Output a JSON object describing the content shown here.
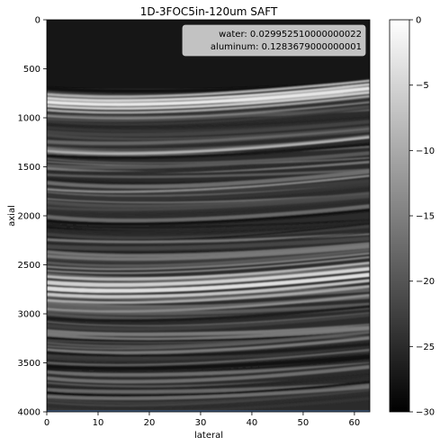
{
  "chart_data": {
    "type": "heatmap",
    "title": "1D-3FOC5in-120um SAFT",
    "xlabel": "lateral",
    "ylabel": "axial",
    "xlim": [
      0,
      63
    ],
    "ylim": [
      4000,
      0
    ],
    "xticks": [
      "0",
      "10",
      "20",
      "30",
      "40",
      "50",
      "60"
    ],
    "yticks": [
      "0",
      "500",
      "1000",
      "1500",
      "2000",
      "2500",
      "3000",
      "3500",
      "4000"
    ],
    "legend": {
      "placement": "top-right",
      "entries": [
        "water: 0.029952510000000022",
        "aluminum: 0.1283679000000001"
      ]
    },
    "colorbar": {
      "range": [
        -30,
        0
      ],
      "ticks": [
        "0",
        "−5",
        "−10",
        "−15",
        "−20",
        "−25",
        "−30"
      ],
      "colormap": "gray"
    },
    "features": {
      "front_wall_echo_axial": 850,
      "back_wall_echo_axial": 2750,
      "bottom_edge_axial": 4000
    }
  }
}
